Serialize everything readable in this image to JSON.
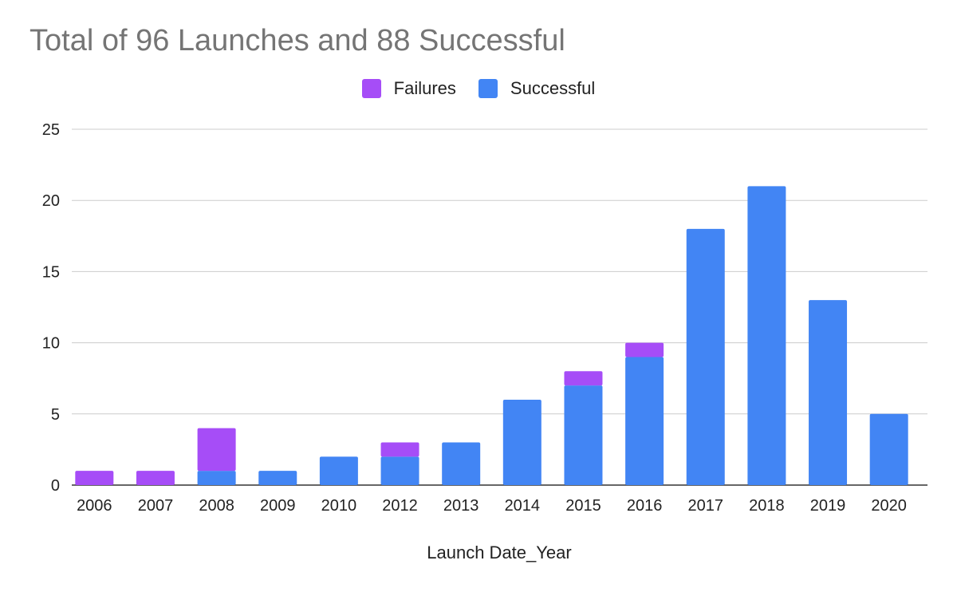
{
  "chart_data": {
    "type": "bar",
    "stacked": true,
    "title": "Total of 96 Launches and 88 Successful",
    "xlabel": "Launch Date_Year",
    "ylabel": "",
    "categories": [
      "2006",
      "2007",
      "2008",
      "2009",
      "2010",
      "2012",
      "2013",
      "2014",
      "2015",
      "2016",
      "2017",
      "2018",
      "2019",
      "2020"
    ],
    "series": [
      {
        "name": "Successful",
        "color": "#4285f4",
        "values": [
          0,
          0,
          1,
          1,
          2,
          2,
          3,
          6,
          7,
          9,
          18,
          21,
          13,
          5
        ]
      },
      {
        "name": "Failures",
        "color": "#a64df7",
        "values": [
          1,
          1,
          3,
          0,
          0,
          1,
          0,
          0,
          1,
          1,
          0,
          0,
          0,
          0
        ]
      }
    ],
    "legend": [
      {
        "name": "Failures",
        "color": "#a64df7"
      },
      {
        "name": "Successful",
        "color": "#4285f4"
      }
    ],
    "yticks": [
      "0",
      "5",
      "10",
      "15",
      "20",
      "25"
    ],
    "ylim": [
      0,
      25
    ],
    "grid": true,
    "legend_position": "top-center"
  }
}
